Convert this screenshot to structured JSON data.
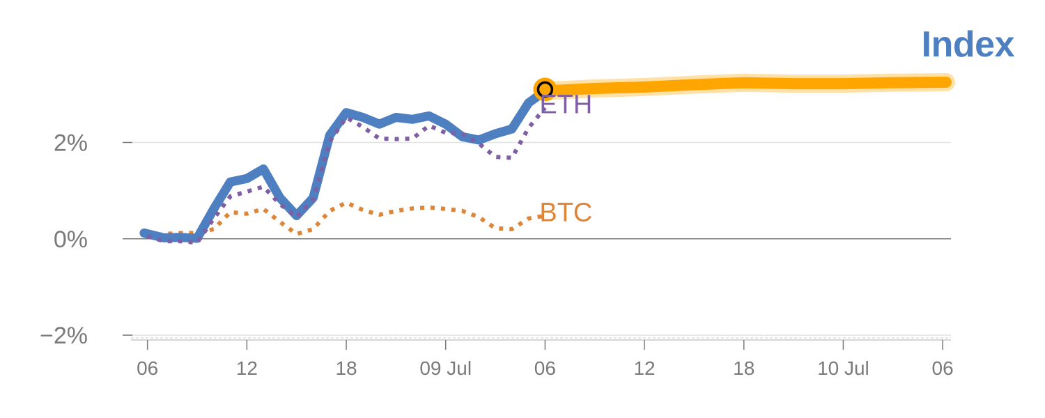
{
  "title": "Index",
  "colors": {
    "index": "#4e7fc1",
    "eth": "#7e5fa3",
    "btc": "#dd8538",
    "forecast": "#ffa500",
    "axis": "#7a7a7a",
    "grid": "#e3e3e3"
  },
  "chart_data": {
    "type": "line",
    "title": "Index",
    "xlabel": "",
    "ylabel": "",
    "y_unit": "%",
    "ylim": [
      -2.1,
      3.8
    ],
    "xlim": [
      -1.5,
      48.5
    ],
    "grid": true,
    "y_ticks": [
      {
        "value": -2,
        "label": "−2%"
      },
      {
        "value": 0,
        "label": "0%"
      },
      {
        "value": 2,
        "label": "2%"
      }
    ],
    "x_ticks": [
      {
        "value": 0,
        "label": "06"
      },
      {
        "value": 6,
        "label": "12"
      },
      {
        "value": 12,
        "label": "18"
      },
      {
        "value": 18,
        "label": "09 Jul"
      },
      {
        "value": 24,
        "label": "06"
      },
      {
        "value": 30,
        "label": "12"
      },
      {
        "value": 36,
        "label": "18"
      },
      {
        "value": 42,
        "label": "10 Jul"
      },
      {
        "value": 48,
        "label": "06"
      }
    ],
    "series": [
      {
        "key": "index",
        "style": "solid",
        "x": [
          -0.2,
          1,
          2,
          3,
          4,
          5,
          6,
          7,
          8,
          9,
          10,
          11,
          12,
          13,
          14,
          15,
          16,
          17,
          18,
          19,
          20,
          21,
          22,
          23,
          24
        ],
        "values": [
          0.12,
          0.02,
          0.03,
          0.01,
          0.62,
          1.18,
          1.25,
          1.45,
          0.85,
          0.48,
          0.85,
          2.15,
          2.62,
          2.52,
          2.38,
          2.52,
          2.48,
          2.55,
          2.38,
          2.12,
          2.05,
          2.18,
          2.28,
          2.82,
          3.07
        ]
      },
      {
        "key": "eth",
        "name": "ETH",
        "style": "dotted",
        "x": [
          0,
          1,
          2,
          3,
          4,
          5,
          6,
          7,
          8,
          9,
          10,
          11,
          12,
          13,
          14,
          15,
          16,
          17,
          18,
          19,
          20,
          21,
          22,
          23,
          24
        ],
        "values": [
          0.05,
          -0.05,
          -0.05,
          -0.08,
          0.42,
          0.88,
          0.98,
          1.08,
          0.72,
          0.45,
          0.82,
          2.02,
          2.52,
          2.32,
          2.08,
          2.07,
          2.08,
          2.35,
          2.2,
          2.18,
          1.98,
          1.7,
          1.68,
          2.3,
          2.72
        ]
      },
      {
        "key": "btc",
        "name": "BTC",
        "style": "dotted",
        "x": [
          0,
          1,
          2,
          3,
          4,
          5,
          6,
          7,
          8,
          9,
          10,
          11,
          12,
          13,
          14,
          15,
          16,
          17,
          18,
          19,
          20,
          21,
          22,
          23,
          24
        ],
        "values": [
          0.05,
          0.1,
          0.12,
          0.12,
          0.2,
          0.55,
          0.52,
          0.62,
          0.35,
          0.1,
          0.2,
          0.58,
          0.75,
          0.6,
          0.5,
          0.58,
          0.63,
          0.65,
          0.62,
          0.58,
          0.45,
          0.22,
          0.2,
          0.42,
          0.48
        ]
      },
      {
        "key": "forecast",
        "style": "band",
        "x": [
          24,
          27,
          30,
          33,
          36,
          39,
          42,
          45,
          48.2
        ],
        "values": [
          3.07,
          3.12,
          3.15,
          3.2,
          3.24,
          3.22,
          3.22,
          3.24,
          3.25
        ]
      }
    ],
    "marker": {
      "x": 24,
      "y": 3.1
    },
    "annotations": [
      {
        "text": "ETH",
        "series": "eth"
      },
      {
        "text": "BTC",
        "series": "btc"
      }
    ]
  }
}
